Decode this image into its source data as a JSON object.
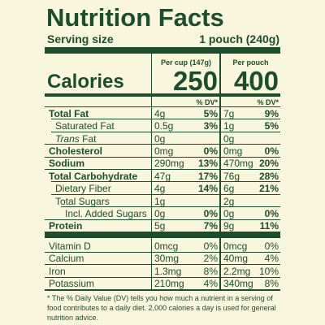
{
  "header": {
    "title": "Nutrition Facts",
    "serving_size_label": "Serving size",
    "serving_size_value": "1 pouch (240g)"
  },
  "columns": {
    "cup": "Per cup (147g)",
    "pouch": "Per pouch",
    "dv": "% DV*"
  },
  "calories": {
    "label": "Calories",
    "cup": "250",
    "pouch": "400"
  },
  "rows": [
    {
      "label": "Total Fat",
      "cup": "4g",
      "cup_dv": "5%",
      "pouch": "7g",
      "pouch_dv": "9%"
    },
    {
      "label": "Saturated Fat",
      "cup": "0.5g",
      "cup_dv": "3%",
      "pouch": "1g",
      "pouch_dv": "5%"
    },
    {
      "label_italic": "Trans",
      "label": "Fat",
      "cup": "0g",
      "pouch": "0g"
    },
    {
      "label": "Cholesterol",
      "cup": "0mg",
      "cup_dv": "0%",
      "pouch": "0mg",
      "pouch_dv": "0%"
    },
    {
      "label": "Sodium",
      "cup": "290mg",
      "cup_dv": "13%",
      "pouch": "470mg",
      "pouch_dv": "20%"
    },
    {
      "label": "Total Carbohydrate",
      "cup": "47g",
      "cup_dv": "17%",
      "pouch": "76g",
      "pouch_dv": "28%"
    },
    {
      "label": "Dietary Fiber",
      "cup": "4g",
      "cup_dv": "14%",
      "pouch": "6g",
      "pouch_dv": "21%"
    },
    {
      "label": "Total Sugars",
      "cup": "1g",
      "pouch": "2g"
    },
    {
      "label": "Incl. Added Sugars",
      "cup": "0g",
      "cup_dv": "0%",
      "pouch": "0g",
      "pouch_dv": "0%"
    },
    {
      "label": "Protein",
      "cup": "5g",
      "cup_dv": "7%",
      "pouch": "9g",
      "pouch_dv": "11%"
    }
  ],
  "minerals": [
    {
      "label": "Vitamin D",
      "cup": "0mcg",
      "cup_dv": "0%",
      "pouch": "0mcg",
      "pouch_dv": "0%"
    },
    {
      "label": "Calcium",
      "cup": "30mg",
      "cup_dv": "2%",
      "pouch": "40mg",
      "pouch_dv": "4%"
    },
    {
      "label": "Iron",
      "cup": "1.3mg",
      "cup_dv": "8%",
      "pouch": "2.2mg",
      "pouch_dv": "10%"
    },
    {
      "label": "Potassium",
      "cup": "210mg",
      "cup_dv": "4%",
      "pouch": "340mg",
      "pouch_dv": "8%"
    }
  ],
  "footnote": "* The % Daily Value (DV) tells you how much a nutrient in a serving of food contributes to a daily diet. 2,000 calories a day is used for general nutrition advice."
}
